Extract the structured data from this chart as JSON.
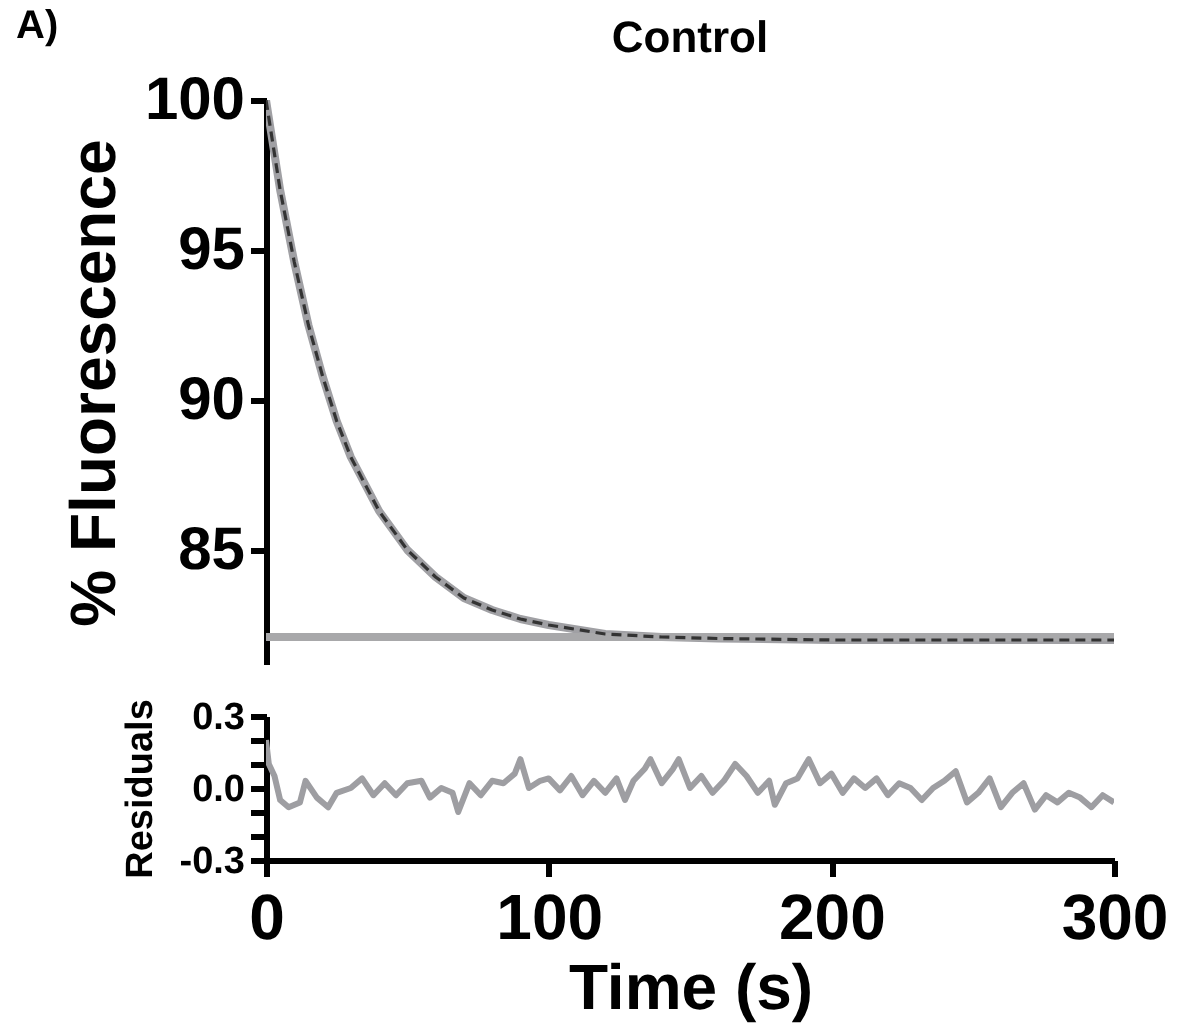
{
  "chart_data": [
    {
      "type": "line",
      "title": "Control",
      "annotations": [
        "A)"
      ],
      "ylabel": "% Fluorescence",
      "xlim": [
        0,
        300
      ],
      "ylim": [
        81.2,
        100
      ],
      "yticks": [
        85,
        90,
        95,
        100
      ],
      "tick_labels": "y",
      "series": [
        {
          "color": "#a0a0a4",
          "x": [
            0,
            5,
            10,
            15,
            20,
            25,
            30,
            40,
            50,
            60,
            70,
            80,
            90,
            100,
            120,
            140,
            160,
            200,
            250,
            300
          ],
          "values": [
            100,
            97.0,
            94.6,
            92.5,
            90.8,
            89.3,
            88.1,
            86.3,
            85.0,
            84.1,
            83.4,
            83.0,
            82.7,
            82.5,
            82.2,
            82.1,
            82.05,
            82.0,
            82.0,
            82.0
          ]
        },
        {
          "color": "#a8a8aa",
          "x": [
            0,
            300
          ],
          "values": [
            82.1,
            82.1
          ]
        },
        {
          "color": "#333333",
          "line_style": "dashed",
          "x": [
            0,
            5,
            10,
            15,
            20,
            25,
            30,
            40,
            50,
            60,
            70,
            80,
            90,
            100,
            120,
            140,
            160,
            200,
            250,
            300
          ],
          "values": [
            100,
            97.0,
            94.6,
            92.5,
            90.8,
            89.3,
            88.1,
            86.3,
            85.0,
            84.1,
            83.4,
            83.0,
            82.7,
            82.5,
            82.2,
            82.1,
            82.05,
            82.0,
            82.0,
            82.0
          ]
        }
      ]
    },
    {
      "type": "line",
      "xlabel": "Time (s)",
      "ylabel": "Residuals",
      "xlim": [
        0,
        300
      ],
      "xticks": [
        0,
        100,
        200,
        300
      ],
      "ylim": [
        -0.3,
        0.3
      ],
      "yticks": [
        {
          "value": -0.3,
          "label": "-0.3"
        },
        {
          "value": -0.2,
          "label": null
        },
        {
          "value": -0.1,
          "label": null
        },
        {
          "value": 0,
          "label": "0.0"
        },
        {
          "value": 0.1,
          "label": null
        },
        {
          "value": 0.2,
          "label": null
        },
        {
          "value": 0.3,
          "label": "0.3"
        }
      ],
      "series": [
        {
          "color": "#9e9ea2",
          "x": [
            0,
            1,
            3,
            5,
            8,
            12,
            14,
            18,
            22,
            25,
            30,
            34,
            38,
            42,
            46,
            50,
            55,
            58,
            62,
            66,
            68,
            72,
            76,
            80,
            84,
            88,
            90,
            93,
            97,
            100,
            104,
            108,
            112,
            116,
            120,
            124,
            127,
            130,
            134,
            136,
            140,
            144,
            146,
            150,
            154,
            158,
            162,
            166,
            170,
            174,
            178,
            180,
            184,
            188,
            192,
            196,
            200,
            204,
            208,
            212,
            216,
            220,
            224,
            228,
            232,
            236,
            240,
            244,
            248,
            252,
            256,
            260,
            264,
            268,
            272,
            276,
            280,
            284,
            288,
            292,
            296,
            300
          ],
          "values": [
            0.2,
            0.1,
            0.05,
            -0.05,
            -0.08,
            -0.06,
            0.03,
            -0.04,
            -0.08,
            -0.02,
            0.0,
            0.04,
            -0.03,
            0.02,
            -0.03,
            0.02,
            0.03,
            -0.04,
            0.0,
            -0.02,
            -0.1,
            0.02,
            -0.03,
            0.03,
            0.02,
            0.06,
            0.12,
            0.0,
            0.03,
            0.04,
            -0.01,
            0.05,
            -0.03,
            0.03,
            -0.02,
            0.04,
            -0.05,
            0.03,
            0.08,
            0.12,
            0.02,
            0.08,
            0.12,
            0.0,
            0.05,
            -0.02,
            0.03,
            0.1,
            0.05,
            -0.02,
            0.03,
            -0.07,
            0.02,
            0.04,
            0.12,
            0.02,
            0.06,
            -0.02,
            0.04,
            0.0,
            0.04,
            -0.03,
            0.02,
            0.0,
            -0.05,
            0.0,
            0.03,
            0.07,
            -0.06,
            -0.02,
            0.04,
            -0.08,
            -0.02,
            0.02,
            -0.09,
            -0.03,
            -0.06,
            -0.02,
            -0.04,
            -0.08,
            -0.03,
            -0.06
          ]
        }
      ]
    }
  ]
}
